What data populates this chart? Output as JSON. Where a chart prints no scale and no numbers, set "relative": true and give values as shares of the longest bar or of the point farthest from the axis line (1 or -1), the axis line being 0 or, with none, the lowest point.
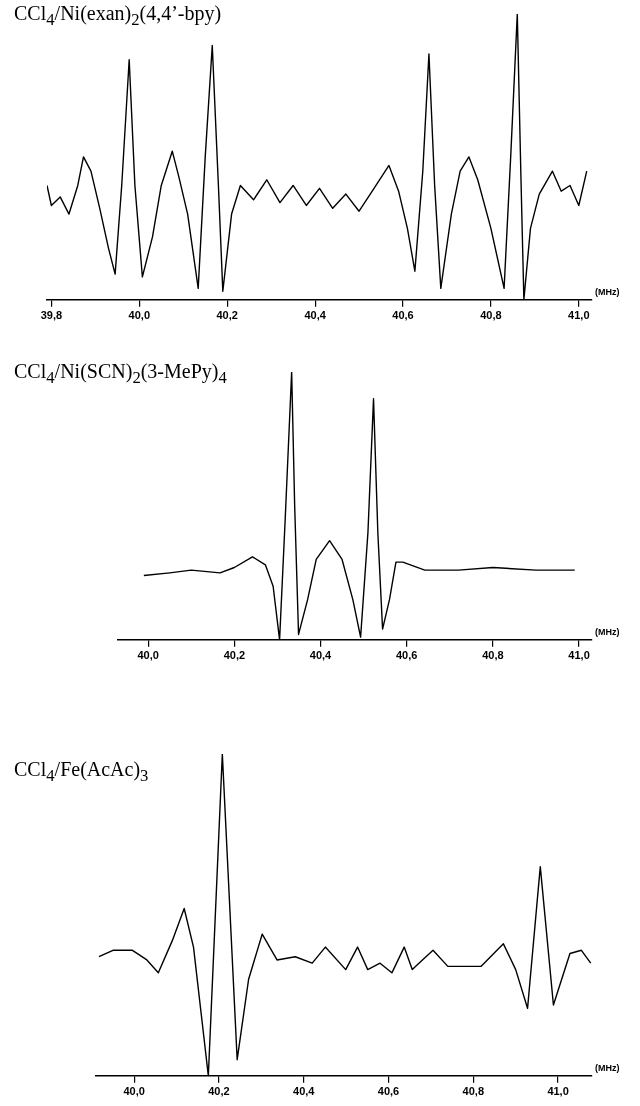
{
  "chart_data": [
    {
      "type": "line",
      "title": "CCl$_{4}$/Ni(exan)$_{2}$(4,4’-bpy)",
      "xlabel": "(MHz)",
      "relative": true,
      "color": "#000000",
      "xlim": [
        39.79,
        41.03
      ],
      "xticks": [
        {
          "value": 39.8,
          "label": "39,8"
        },
        {
          "value": 40.0,
          "label": "40,0"
        },
        {
          "value": 40.2,
          "label": "40,2"
        },
        {
          "value": 40.4,
          "label": "40,4"
        },
        {
          "value": 40.6,
          "label": "40,6"
        },
        {
          "value": 40.8,
          "label": "40,8"
        },
        {
          "value": 41.0,
          "label": "41,0"
        }
      ],
      "x": [
        39.79,
        39.8,
        39.82,
        39.84,
        39.86,
        39.873,
        39.89,
        39.91,
        39.93,
        39.945,
        39.96,
        39.977,
        39.99,
        40.007,
        40.03,
        40.05,
        40.075,
        40.09,
        40.11,
        40.134,
        40.15,
        40.166,
        40.18,
        40.19,
        40.21,
        40.23,
        40.26,
        40.29,
        40.32,
        40.35,
        40.38,
        40.41,
        40.44,
        40.47,
        40.5,
        40.53,
        40.568,
        40.59,
        40.61,
        40.627,
        40.645,
        40.659,
        40.672,
        40.686,
        40.71,
        40.73,
        40.75,
        40.77,
        40.8,
        40.83,
        40.845,
        40.86,
        40.868,
        40.875,
        40.89,
        40.91,
        40.94,
        40.96,
        40.98,
        41.0,
        41.018
      ],
      "values": [
        0.4,
        0.33,
        0.36,
        0.3,
        0.4,
        0.5,
        0.45,
        0.32,
        0.18,
        0.09,
        0.4,
        0.84,
        0.4,
        0.08,
        0.22,
        0.4,
        0.52,
        0.43,
        0.3,
        0.04,
        0.5,
        0.89,
        0.4,
        0.03,
        0.3,
        0.4,
        0.35,
        0.42,
        0.34,
        0.4,
        0.33,
        0.39,
        0.32,
        0.37,
        0.31,
        0.38,
        0.47,
        0.38,
        0.25,
        0.1,
        0.45,
        0.86,
        0.4,
        0.04,
        0.3,
        0.45,
        0.5,
        0.42,
        0.25,
        0.04,
        0.5,
        1,
        0.45,
        0,
        0.25,
        0.37,
        0.45,
        0.38,
        0.4,
        0.33,
        0.45
      ]
    },
    {
      "type": "line",
      "title": "CCl$_{4}$/Ni(SCN)$_{2}$(3-MePy)$_{4}$",
      "xlabel": "(MHz)",
      "relative": true,
      "color": "#000000",
      "xlim": [
        39.93,
        41.03
      ],
      "xticks": [
        {
          "value": 40.0,
          "label": "40,0"
        },
        {
          "value": 40.2,
          "label": "40,2"
        },
        {
          "value": 40.4,
          "label": "40,4"
        },
        {
          "value": 40.6,
          "label": "40,6"
        },
        {
          "value": 40.8,
          "label": "40,8"
        },
        {
          "value": 41.0,
          "label": "41,0"
        }
      ],
      "x": [
        39.99,
        40.05,
        40.1,
        40.167,
        40.2,
        40.242,
        40.272,
        40.29,
        40.305,
        40.318,
        40.333,
        40.34,
        40.349,
        40.37,
        40.39,
        40.421,
        40.45,
        40.475,
        40.493,
        40.51,
        40.523,
        40.533,
        40.544,
        40.56,
        40.575,
        40.591,
        40.642,
        40.72,
        40.8,
        40.9,
        40.99
      ],
      "values": [
        0.24,
        0.25,
        0.26,
        0.25,
        0.27,
        0.31,
        0.28,
        0.2,
        0,
        0.45,
        1,
        0.5,
        0.02,
        0.15,
        0.3,
        0.37,
        0.3,
        0.15,
        0.01,
        0.4,
        0.9,
        0.4,
        0.04,
        0.15,
        0.29,
        0.29,
        0.26,
        0.26,
        0.27,
        0.26,
        0.26
      ]
    },
    {
      "type": "line",
      "title": "CCl$_{4}$/Fe(AcAc)$_{3}$",
      "xlabel": "(MHz)",
      "relative": true,
      "color": "#000000",
      "xlim": [
        39.91,
        41.08
      ],
      "xticks": [
        {
          "value": 40.0,
          "label": "40,0"
        },
        {
          "value": 40.2,
          "label": "40,2"
        },
        {
          "value": 40.4,
          "label": "40,4"
        },
        {
          "value": 40.6,
          "label": "40,6"
        },
        {
          "value": 40.8,
          "label": "40,8"
        },
        {
          "value": 41.0,
          "label": "41,0"
        }
      ],
      "x": [
        39.917,
        39.95,
        39.996,
        40.03,
        40.057,
        40.09,
        40.118,
        40.14,
        40.175,
        40.208,
        40.243,
        40.27,
        40.302,
        40.337,
        40.38,
        40.42,
        40.451,
        40.499,
        40.527,
        40.551,
        40.58,
        40.608,
        40.637,
        40.656,
        40.68,
        40.705,
        40.74,
        40.78,
        40.818,
        40.871,
        40.9,
        40.928,
        40.958,
        40.989,
        41.028,
        41.055,
        41.077
      ],
      "values": [
        0.37,
        0.39,
        0.39,
        0.36,
        0.32,
        0.42,
        0.52,
        0.4,
        0,
        1,
        0.05,
        0.3,
        0.44,
        0.36,
        0.37,
        0.35,
        0.4,
        0.33,
        0.4,
        0.33,
        0.35,
        0.32,
        0.4,
        0.33,
        0.36,
        0.39,
        0.34,
        0.34,
        0.34,
        0.41,
        0.33,
        0.21,
        0.65,
        0.22,
        0.38,
        0.39,
        0.35
      ]
    }
  ]
}
